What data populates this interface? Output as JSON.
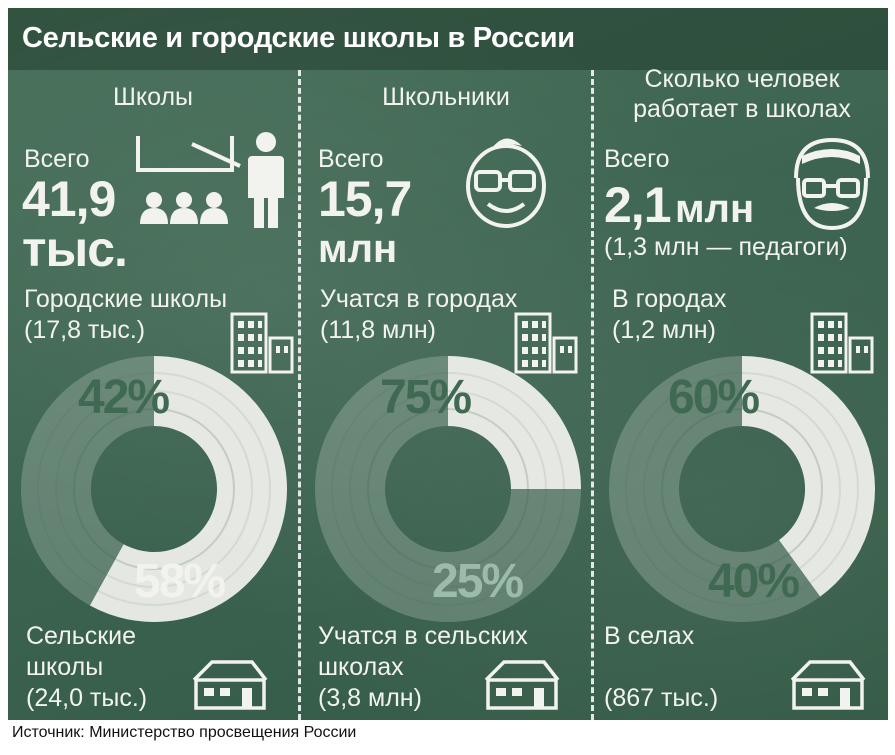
{
  "title": "Сельские и городские школы в России",
  "source": "Источник: Министерство просвещения России",
  "colors": {
    "board": "#3c6450",
    "chalk": "#f2f2ee",
    "green_text": "#3f6a51"
  },
  "columns": [
    {
      "header": [
        "Школы"
      ],
      "total_label": "Всего",
      "total_value": "41,9",
      "total_unit": "тыс.",
      "urban_label": [
        "Городские школы",
        "(17,8 тыс.)"
      ],
      "rural_label": [
        "Сельские",
        "школы",
        "(24,0 тыс.)"
      ],
      "icon": "teacher-classroom-icon"
    },
    {
      "header": [
        "Школьники"
      ],
      "total_label": "Всего",
      "total_value": "15,7",
      "total_unit": "млн",
      "urban_label": [
        "Учатся в городах",
        "(11,8 млн)"
      ],
      "rural_label": [
        "Учатся в сельских",
        "школах",
        "(3,8 млн)"
      ],
      "icon": "student-face-icon"
    },
    {
      "header": [
        "Сколько человек",
        "работает в школах"
      ],
      "total_label": "Всего",
      "total_value": "2,1",
      "total_unit": "млн",
      "total_note": "(1,3 млн — педагоги)",
      "urban_label": [
        "В городах",
        "(1,2 млн)"
      ],
      "rural_label": [
        "В селах",
        "",
        "(867 тыс.)"
      ],
      "icon": "teacher-face-icon"
    }
  ],
  "chart_data": [
    {
      "type": "pie",
      "title": "Школы",
      "categories": [
        "Городские школы",
        "Сельские школы"
      ],
      "values": [
        42,
        58
      ],
      "labels": [
        "42%",
        "58%"
      ]
    },
    {
      "type": "pie",
      "title": "Школьники",
      "categories": [
        "Учатся в городах",
        "Учатся в сельских школах"
      ],
      "values": [
        75,
        25
      ],
      "labels": [
        "75%",
        "25%"
      ]
    },
    {
      "type": "pie",
      "title": "Сколько человек работает в школах",
      "categories": [
        "В городах",
        "В селах"
      ],
      "values": [
        60,
        40
      ],
      "labels": [
        "60%",
        "40%"
      ]
    }
  ]
}
